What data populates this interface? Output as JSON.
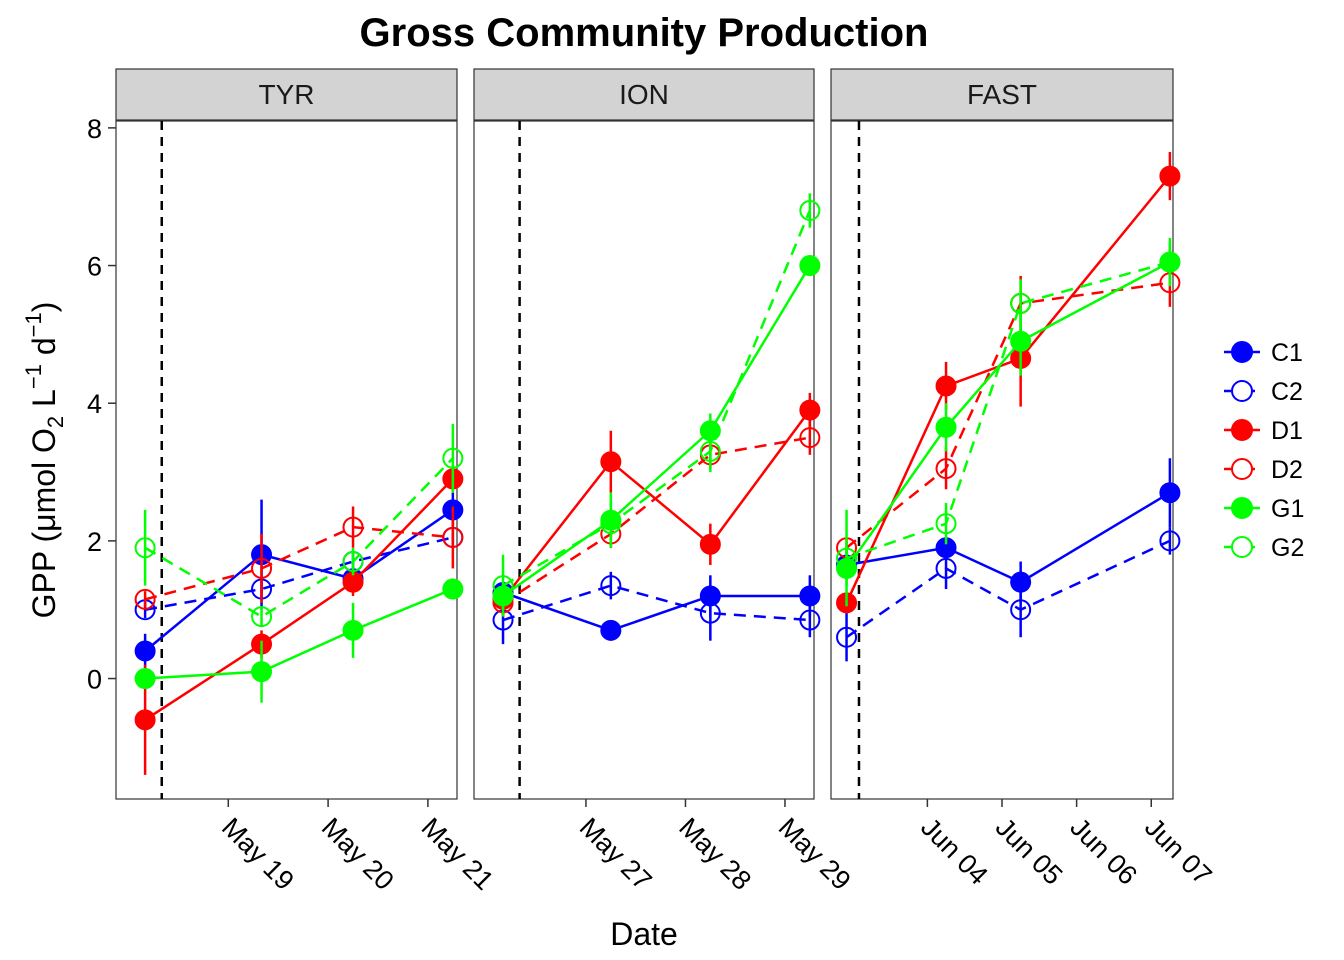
{
  "chart_data": {
    "type": "line",
    "title": "Gross Community Production",
    "xlabel": "Date",
    "ylabel": "GPP (μmol O2 L−1 d−1)",
    "ylim": [
      -1.75,
      8.1
    ],
    "y_ticks": [
      0,
      2,
      4,
      6,
      8
    ],
    "grid": false,
    "legend_position": "right",
    "legend": [
      {
        "name": "C1",
        "color": "#0000FF",
        "filled": true,
        "dashed": false
      },
      {
        "name": "C2",
        "color": "#0000FF",
        "filled": false,
        "dashed": true
      },
      {
        "name": "D1",
        "color": "#FF0000",
        "filled": true,
        "dashed": false
      },
      {
        "name": "D2",
        "color": "#FF0000",
        "filled": false,
        "dashed": true
      },
      {
        "name": "G1",
        "color": "#00FF00",
        "filled": true,
        "dashed": false
      },
      {
        "name": "G2",
        "color": "#00FF00",
        "filled": false,
        "dashed": true
      }
    ],
    "panels": [
      {
        "label": "TYR",
        "xlim": [
          "2017-05-17T21:00",
          "2017-05-21T07:00"
        ],
        "x_ticks": [
          "2017-05-19",
          "2017-05-20",
          "2017-05-21"
        ],
        "x_tick_labels": [
          "May 19",
          "May 20",
          "May 21"
        ],
        "treatment_line": "2017-05-18T08:00",
        "x": [
          "2017-05-18T04:00",
          "2017-05-19T08:00",
          "2017-05-20T06:00",
          "2017-05-21T06:00"
        ],
        "series": [
          {
            "name": "C1",
            "values": [
              0.4,
              1.8,
              1.45,
              2.45
            ],
            "errors": [
              0.25,
              0.8,
              0.12,
              0.25
            ]
          },
          {
            "name": "C2",
            "values": [
              1.0,
              1.3,
              1.7,
              2.05
            ],
            "errors": [
              0.12,
              0.12,
              0.15,
              0.12
            ]
          },
          {
            "name": "D1",
            "values": [
              -0.6,
              0.5,
              1.4,
              2.9
            ],
            "errors": [
              0.8,
              0.2,
              0.2,
              0.2
            ]
          },
          {
            "name": "D2",
            "values": [
              1.15,
              1.6,
              2.2,
              2.05
            ],
            "errors": [
              0.12,
              0.5,
              0.3,
              0.45
            ]
          },
          {
            "name": "G1",
            "values": [
              0.0,
              0.1,
              0.7,
              1.3
            ],
            "errors": [
              0.15,
              0.45,
              0.4,
              0.1
            ]
          },
          {
            "name": "G2",
            "values": [
              1.9,
              0.9,
              1.7,
              3.2
            ],
            "errors": [
              0.55,
              0.15,
              0.2,
              0.5
            ]
          }
        ]
      },
      {
        "label": "ION",
        "xlim": [
          "2017-05-25T21:00",
          "2017-05-29T07:00"
        ],
        "x_ticks": [
          "2017-05-27",
          "2017-05-28",
          "2017-05-29"
        ],
        "x_tick_labels": [
          "May 27",
          "May 28",
          "May 29"
        ],
        "treatment_line": "2017-05-26T08:00",
        "x": [
          "2017-05-26T04:00",
          "2017-05-27T06:00",
          "2017-05-28T06:00",
          "2017-05-29T06:00"
        ],
        "series": [
          {
            "name": "C1",
            "values": [
              1.25,
              0.7,
              1.2,
              1.2
            ],
            "errors": [
              0.12,
              0.15,
              0.3,
              0.3
            ]
          },
          {
            "name": "C2",
            "values": [
              0.85,
              1.35,
              0.95,
              0.85
            ],
            "errors": [
              0.35,
              0.2,
              0.4,
              0.25
            ]
          },
          {
            "name": "D1",
            "values": [
              1.15,
              3.15,
              1.95,
              3.9
            ],
            "errors": [
              0.15,
              0.45,
              0.3,
              0.25
            ]
          },
          {
            "name": "D2",
            "values": [
              1.1,
              2.1,
              3.25,
              3.5
            ],
            "errors": [
              0.2,
              0.2,
              0.2,
              0.25
            ]
          },
          {
            "name": "G1",
            "values": [
              1.2,
              2.3,
              3.6,
              6.0
            ],
            "errors": [
              0.2,
              0.4,
              0.25,
              0.12
            ]
          },
          {
            "name": "G2",
            "values": [
              1.35,
              2.25,
              3.3,
              6.8
            ],
            "errors": [
              0.45,
              0.35,
              0.3,
              0.25
            ]
          }
        ]
      },
      {
        "label": "FAST",
        "xlim": [
          "2017-06-02T17:00",
          "2017-06-07T07:00"
        ],
        "x_ticks": [
          "2017-06-04",
          "2017-06-05",
          "2017-06-06",
          "2017-06-07"
        ],
        "x_tick_labels": [
          "Jun 04",
          "Jun 05",
          "Jun 06",
          "Jun 07"
        ],
        "treatment_line": "2017-06-03T02:00",
        "x": [
          "2017-06-02T22:00",
          "2017-06-04T06:00",
          "2017-06-05T06:00",
          "2017-06-07T06:00"
        ],
        "series": [
          {
            "name": "C1",
            "values": [
              1.65,
              1.9,
              1.4,
              2.7
            ],
            "errors": [
              0.12,
              0.15,
              0.3,
              0.5
            ]
          },
          {
            "name": "C2",
            "values": [
              0.6,
              1.6,
              1.0,
              2.0
            ],
            "errors": [
              0.35,
              0.3,
              0.4,
              0.2
            ]
          },
          {
            "name": "D1",
            "values": [
              1.1,
              4.25,
              4.65,
              7.3
            ],
            "errors": [
              0.12,
              0.35,
              0.7,
              0.35
            ]
          },
          {
            "name": "D2",
            "values": [
              1.9,
              3.05,
              5.45,
              5.75
            ],
            "errors": [
              0.12,
              0.3,
              0.4,
              0.35
            ]
          },
          {
            "name": "G1",
            "values": [
              1.6,
              3.65,
              4.9,
              6.05
            ],
            "errors": [
              0.25,
              0.35,
              0.5,
              0.35
            ]
          },
          {
            "name": "G2",
            "values": [
              1.75,
              2.25,
              5.45,
              6.05
            ],
            "errors": [
              0.7,
              0.3,
              0.35,
              0.25
            ]
          }
        ]
      }
    ]
  }
}
